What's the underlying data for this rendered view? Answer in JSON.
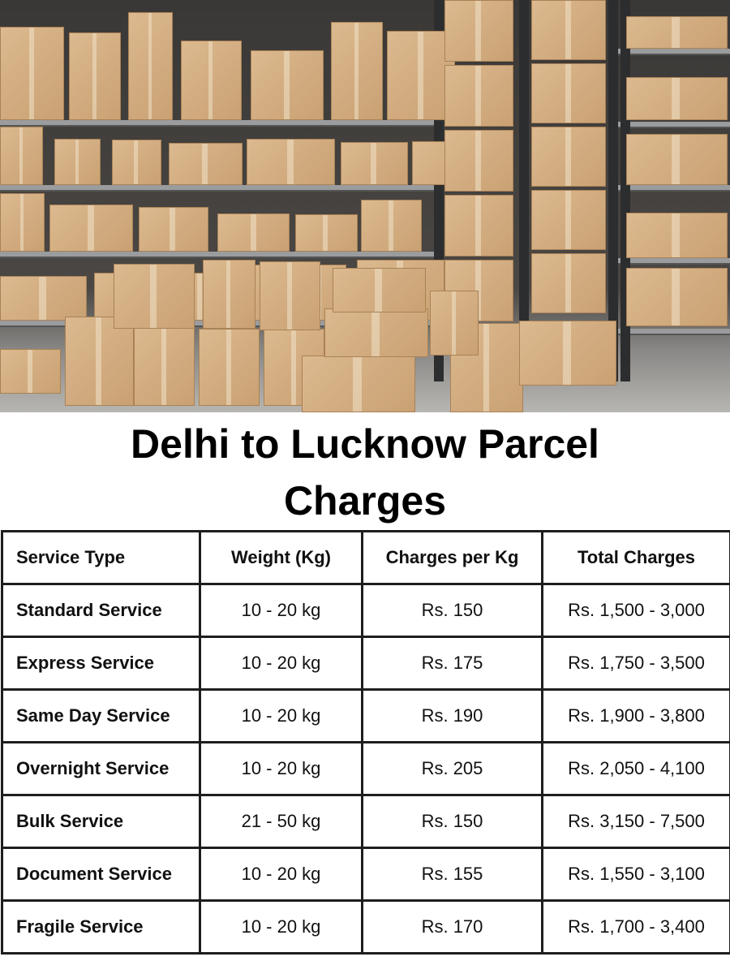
{
  "image": {
    "subject": "warehouse-parcel-boxes-photo"
  },
  "title": {
    "line1": "Delhi to Lucknow Parcel",
    "line2": "Charges"
  },
  "table": {
    "headers": [
      "Service Type",
      "Weight (Kg)",
      "Charges per Kg",
      "Total Charges"
    ],
    "rows": [
      [
        "Standard Service",
        "10 - 20 kg",
        "Rs. 150",
        "Rs. 1,500 - 3,000"
      ],
      [
        "Express Service",
        "10 - 20 kg",
        "Rs. 175",
        "Rs. 1,750 - 3,500"
      ],
      [
        "Same Day Service",
        "10 - 20 kg",
        "Rs. 190",
        "Rs. 1,900 - 3,800"
      ],
      [
        "Overnight Service",
        "10 - 20 kg",
        "Rs. 205",
        "Rs. 2,050 - 4,100"
      ],
      [
        "Bulk Service",
        "21 - 50 kg",
        "Rs. 150",
        "Rs. 3,150 - 7,500"
      ],
      [
        "Document Service",
        "10 - 20 kg",
        "Rs. 155",
        "Rs. 1,550 - 3,100"
      ],
      [
        "Fragile Service",
        "10 - 20 kg",
        "Rs. 170",
        "Rs. 1,700 - 3,400"
      ]
    ]
  }
}
